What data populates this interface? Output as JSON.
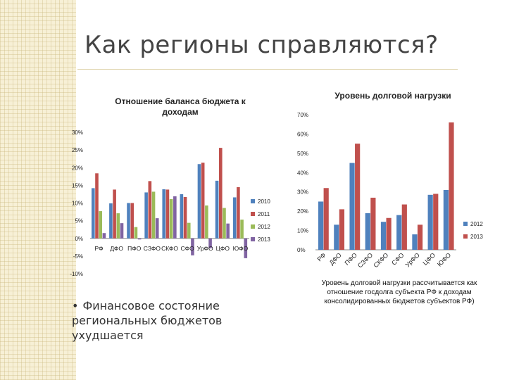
{
  "slide": {
    "title": "Как регионы справляются?",
    "bullet": "Финансовое состояние региональных бюджетов ухудшается",
    "note": "Уровень долговой нагрузки рассчитывается как отношение госдолга субъекта РФ к доходам консолидированных бюджетов субъектов РФ)"
  },
  "colors": {
    "2010": "#4f81bd",
    "2011": "#c0504d",
    "2012": "#9bbb59",
    "2013": "#8064a2"
  },
  "chart_data": [
    {
      "type": "bar",
      "title": "Отношение  баланса бюджета к доходам",
      "categories": [
        "РФ",
        "ДФО",
        "ПФО",
        "СЗФО",
        "СКФО",
        "СФО",
        "УрФО",
        "ЦФО",
        "ЮФО"
      ],
      "ylim": [
        -10,
        30
      ],
      "yticks": [
        "-10%",
        "-5%",
        "0%",
        "5%",
        "10%",
        "15%",
        "20%",
        "25%",
        "30%"
      ],
      "legend_position": "right",
      "series": [
        {
          "name": "2010",
          "color": "#4f81bd",
          "values": [
            14.2,
            9.9,
            10.0,
            13.0,
            13.9,
            12.5,
            21.0,
            16.3,
            11.6
          ]
        },
        {
          "name": "2011",
          "color": "#c0504d",
          "values": [
            18.4,
            13.8,
            10.0,
            16.2,
            13.8,
            11.7,
            21.4,
            25.6,
            14.5
          ]
        },
        {
          "name": "2012",
          "color": "#9bbb59",
          "values": [
            7.7,
            7.1,
            3.2,
            13.2,
            11.1,
            4.4,
            9.3,
            8.6,
            5.3
          ]
        },
        {
          "name": "2013",
          "color": "#8064a2",
          "values": [
            1.5,
            4.3,
            -0.3,
            5.7,
            11.9,
            -4.8,
            -2.8,
            4.2,
            -5.6
          ]
        }
      ]
    },
    {
      "type": "bar",
      "title": "Уровень долговой нагрузки",
      "categories": [
        "РФ",
        "ДФО",
        "ПФО",
        "СЗФО",
        "СКФО",
        "СФО",
        "УрФО",
        "ЦФО",
        "ЮФО"
      ],
      "ylim": [
        0,
        70
      ],
      "yticks": [
        "0%",
        "10%",
        "20%",
        "30%",
        "40%",
        "50%",
        "60%",
        "70%"
      ],
      "legend_position": "right",
      "series": [
        {
          "name": "2012",
          "color": "#4f81bd",
          "values": [
            25,
            13,
            45,
            19,
            14.5,
            18,
            8,
            28.5,
            31
          ]
        },
        {
          "name": "2013",
          "color": "#c0504d",
          "values": [
            32,
            21,
            55,
            27,
            16.5,
            23.5,
            13,
            29,
            66
          ]
        }
      ]
    }
  ]
}
